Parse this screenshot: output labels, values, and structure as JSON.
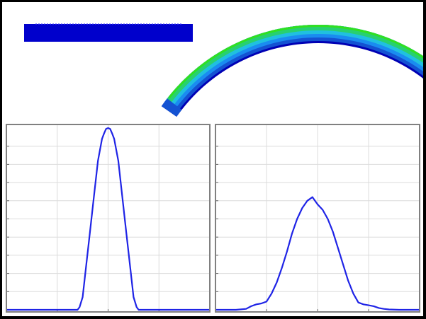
{
  "colors": {
    "frame_border": "#000000",
    "background": "#ffffff",
    "plot_border": "#808080",
    "grid": "#dcdcdc",
    "curve": "#1f24e6",
    "flat_bar": "#0000cc",
    "contour_levels": [
      "#0000b4",
      "#1452d2",
      "#1a8cf0",
      "#20c0e0",
      "#28d070",
      "#30e020"
    ]
  },
  "chart_data": [
    {
      "type": "line",
      "title": "",
      "xlabel": "",
      "ylabel": "",
      "xlim": [
        -100,
        100
      ],
      "ylim": [
        0,
        10
      ],
      "grid": true,
      "x_gridlines": [
        -50,
        0,
        50
      ],
      "y_gridlines": [
        1,
        2,
        3,
        4,
        5,
        6,
        7,
        8,
        9
      ],
      "series": [
        {
          "x": [
            -100,
            -80,
            -60,
            -30,
            -28,
            -25,
            -22,
            -18,
            -14,
            -10,
            -6,
            -4,
            -2,
            0,
            2,
            4,
            6,
            10,
            14,
            18,
            22,
            25,
            28,
            30,
            60,
            80,
            100
          ],
          "values": [
            0,
            0,
            0,
            0,
            0.15,
            0.7,
            2.2,
            4.2,
            6.2,
            8.2,
            9.4,
            9.7,
            9.95,
            10,
            9.95,
            9.7,
            9.4,
            8.2,
            6.2,
            4.2,
            2.2,
            0.7,
            0.15,
            0,
            0,
            0,
            0
          ]
        }
      ]
    },
    {
      "type": "line",
      "title": "",
      "xlabel": "",
      "ylabel": "",
      "xlim": [
        -100,
        100
      ],
      "ylim": [
        0,
        10
      ],
      "grid": true,
      "x_gridlines": [
        -50,
        0,
        50
      ],
      "y_gridlines": [
        1,
        2,
        3,
        4,
        5,
        6,
        7,
        8,
        9
      ],
      "series": [
        {
          "x": [
            -100,
            -80,
            -70,
            -65,
            -60,
            -55,
            -50,
            -45,
            -40,
            -35,
            -30,
            -25,
            -20,
            -15,
            -10,
            -5,
            0,
            5,
            10,
            15,
            20,
            25,
            30,
            35,
            40,
            45,
            50,
            55,
            60,
            65,
            70,
            80,
            100
          ],
          "values": [
            0,
            0,
            0.05,
            0.2,
            0.3,
            0.35,
            0.45,
            0.9,
            1.5,
            2.3,
            3.2,
            4.2,
            5.0,
            5.6,
            6.0,
            6.2,
            5.8,
            5.5,
            5.0,
            4.3,
            3.4,
            2.5,
            1.6,
            0.9,
            0.4,
            0.3,
            0.25,
            0.2,
            0.1,
            0.05,
            0.02,
            0,
            0
          ]
        }
      ]
    }
  ]
}
